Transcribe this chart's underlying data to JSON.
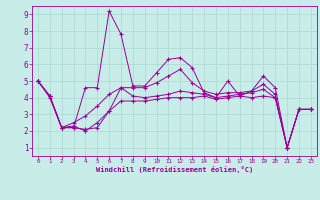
{
  "xlabel": "Windchill (Refroidissement éolien,°C)",
  "background_color": "#c8ece8",
  "grid_color": "#a8d8d0",
  "line_color": "#990099",
  "xlim": [
    -0.5,
    23.5
  ],
  "ylim": [
    0.5,
    9.5
  ],
  "xticks": [
    0,
    1,
    2,
    3,
    4,
    5,
    6,
    7,
    8,
    9,
    10,
    11,
    12,
    13,
    14,
    15,
    16,
    17,
    18,
    19,
    20,
    21,
    22,
    23
  ],
  "yticks": [
    1,
    2,
    3,
    4,
    5,
    6,
    7,
    8,
    9
  ],
  "line1_x": [
    0,
    1,
    2,
    3,
    4,
    5,
    6,
    7,
    8,
    9,
    10,
    11,
    12,
    13,
    14,
    15,
    16,
    17,
    18,
    19,
    20,
    21,
    22,
    23
  ],
  "line1_y": [
    5.0,
    4.1,
    2.2,
    2.2,
    4.6,
    4.6,
    9.2,
    7.8,
    4.7,
    4.7,
    5.5,
    6.3,
    6.4,
    5.8,
    4.3,
    4.0,
    5.0,
    4.1,
    4.4,
    5.3,
    4.6,
    1.0,
    3.3,
    3.3
  ],
  "line2_x": [
    0,
    1,
    2,
    3,
    4,
    5,
    6,
    7,
    8,
    9,
    10,
    11,
    12,
    13,
    14,
    15,
    16,
    17,
    18,
    19,
    20,
    21,
    22,
    23
  ],
  "line2_y": [
    5.0,
    4.1,
    2.2,
    2.3,
    2.0,
    2.5,
    3.2,
    4.6,
    4.6,
    4.6,
    4.9,
    5.3,
    5.7,
    4.9,
    4.4,
    4.2,
    4.3,
    4.3,
    4.4,
    4.8,
    4.2,
    1.0,
    3.3,
    3.3
  ],
  "line3_x": [
    0,
    1,
    2,
    3,
    4,
    5,
    6,
    7,
    8,
    9,
    10,
    11,
    12,
    13,
    14,
    15,
    16,
    17,
    18,
    19,
    20,
    21,
    22,
    23
  ],
  "line3_y": [
    5.0,
    4.0,
    2.2,
    2.5,
    2.9,
    3.5,
    4.2,
    4.6,
    4.1,
    4.0,
    4.1,
    4.2,
    4.4,
    4.3,
    4.2,
    4.0,
    4.1,
    4.2,
    4.3,
    4.5,
    4.0,
    1.0,
    3.3,
    3.3
  ],
  "line4_x": [
    0,
    1,
    2,
    3,
    4,
    5,
    6,
    7,
    8,
    9,
    10,
    11,
    12,
    13,
    14,
    15,
    16,
    17,
    18,
    19,
    20,
    21,
    22,
    23
  ],
  "line4_y": [
    5.0,
    4.1,
    2.2,
    2.2,
    2.1,
    2.2,
    3.2,
    3.8,
    3.8,
    3.8,
    3.9,
    4.0,
    4.0,
    4.0,
    4.1,
    3.9,
    4.0,
    4.1,
    4.0,
    4.1,
    4.0,
    1.0,
    3.3,
    3.3
  ]
}
